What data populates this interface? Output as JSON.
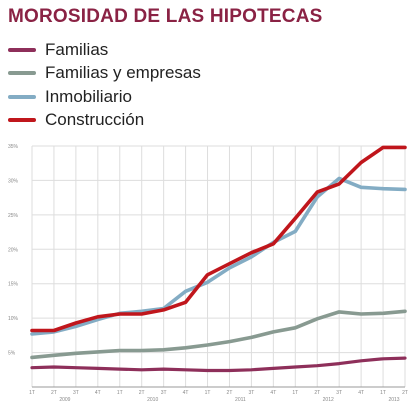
{
  "chart_data": {
    "type": "line",
    "title": "MOROSIDAD DE LAS HIPOTECAS",
    "x": [
      "1T 2009",
      "2T 2009",
      "3T 2009",
      "4T 2009",
      "1T 2010",
      "2T 2010",
      "3T 2010",
      "4T 2010",
      "1T 2011",
      "2T 2011",
      "3T 2011",
      "4T 2011",
      "1T 2012",
      "2T 2012",
      "3T 2012",
      "4T 2012",
      "1T 2013",
      "2T 2013"
    ],
    "tick_labels": [
      "1T",
      "2T",
      "3T",
      "4T",
      "1T",
      "2T",
      "3T",
      "4T",
      "1T",
      "2T",
      "3T",
      "4T",
      "1T",
      "2T",
      "3T",
      "4T",
      "1T",
      "2T"
    ],
    "year_labels": [
      {
        "label": "2009",
        "center_index": 1.5
      },
      {
        "label": "2010",
        "center_index": 5.5
      },
      {
        "label": "2011",
        "center_index": 9.5
      },
      {
        "label": "2012",
        "center_index": 13.5
      },
      {
        "label": "2013",
        "center_index": 16.5
      }
    ],
    "y_ticks": [
      0,
      5,
      10,
      15,
      20,
      25,
      30,
      35
    ],
    "y_tick_labels": [
      "0",
      "5%",
      "10%",
      "15%",
      "20%",
      "25%",
      "30%",
      "35%"
    ],
    "ylim": [
      0,
      35
    ],
    "grid": true,
    "legend_position": "top-left",
    "series": [
      {
        "name": "Familias",
        "color": "#8e2f5a",
        "values": [
          2.8,
          2.9,
          2.8,
          2.7,
          2.6,
          2.5,
          2.6,
          2.5,
          2.4,
          2.4,
          2.5,
          2.7,
          2.9,
          3.1,
          3.4,
          3.8,
          4.1,
          4.2
        ]
      },
      {
        "name": "Familias y empresas",
        "color": "#889a91",
        "values": [
          4.3,
          4.6,
          4.9,
          5.1,
          5.3,
          5.3,
          5.4,
          5.7,
          6.1,
          6.6,
          7.2,
          8.0,
          8.6,
          9.9,
          10.9,
          10.6,
          10.7,
          11.0
        ]
      },
      {
        "name": "Inmobiliario",
        "color": "#83acc4",
        "values": [
          7.7,
          8.0,
          8.8,
          9.8,
          10.7,
          11.0,
          11.4,
          13.9,
          15.2,
          17.3,
          18.9,
          21.0,
          22.6,
          27.6,
          30.3,
          29.0,
          28.8,
          28.7
        ]
      },
      {
        "name": "Construcción",
        "color": "#c0161c",
        "values": [
          8.2,
          8.2,
          9.3,
          10.2,
          10.6,
          10.6,
          11.2,
          12.3,
          16.3,
          17.9,
          19.5,
          20.8,
          24.5,
          28.3,
          29.5,
          32.6,
          34.8,
          34.8
        ]
      }
    ]
  }
}
